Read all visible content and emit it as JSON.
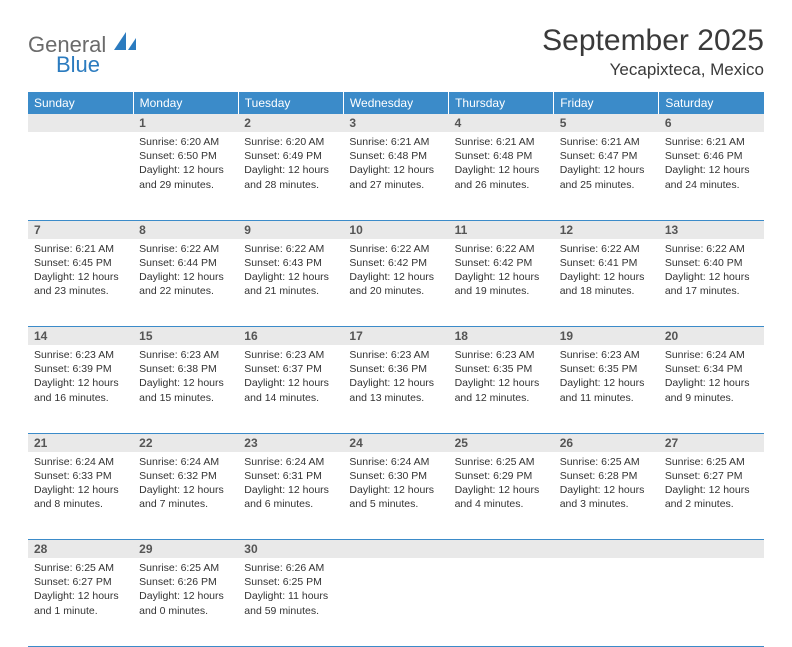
{
  "brand": {
    "word1": "General",
    "word2": "Blue",
    "accent": "#2b7bbf",
    "gray": "#6b6b6b"
  },
  "title": {
    "month": "September 2025",
    "location": "Yecapixteca, Mexico"
  },
  "headers": [
    "Sunday",
    "Monday",
    "Tuesday",
    "Wednesday",
    "Thursday",
    "Friday",
    "Saturday"
  ],
  "header_bg": "#3b8bc9",
  "grid_border": "#3b8bc9",
  "daynum_bg": "#e9e9e9",
  "weeks": [
    {
      "nums": [
        "",
        "1",
        "2",
        "3",
        "4",
        "5",
        "6"
      ],
      "cells": [
        null,
        {
          "sunrise": "6:20 AM",
          "sunset": "6:50 PM",
          "daylight": "12 hours and 29 minutes."
        },
        {
          "sunrise": "6:20 AM",
          "sunset": "6:49 PM",
          "daylight": "12 hours and 28 minutes."
        },
        {
          "sunrise": "6:21 AM",
          "sunset": "6:48 PM",
          "daylight": "12 hours and 27 minutes."
        },
        {
          "sunrise": "6:21 AM",
          "sunset": "6:48 PM",
          "daylight": "12 hours and 26 minutes."
        },
        {
          "sunrise": "6:21 AM",
          "sunset": "6:47 PM",
          "daylight": "12 hours and 25 minutes."
        },
        {
          "sunrise": "6:21 AM",
          "sunset": "6:46 PM",
          "daylight": "12 hours and 24 minutes."
        }
      ]
    },
    {
      "nums": [
        "7",
        "8",
        "9",
        "10",
        "11",
        "12",
        "13"
      ],
      "cells": [
        {
          "sunrise": "6:21 AM",
          "sunset": "6:45 PM",
          "daylight": "12 hours and 23 minutes."
        },
        {
          "sunrise": "6:22 AM",
          "sunset": "6:44 PM",
          "daylight": "12 hours and 22 minutes."
        },
        {
          "sunrise": "6:22 AM",
          "sunset": "6:43 PM",
          "daylight": "12 hours and 21 minutes."
        },
        {
          "sunrise": "6:22 AM",
          "sunset": "6:42 PM",
          "daylight": "12 hours and 20 minutes."
        },
        {
          "sunrise": "6:22 AM",
          "sunset": "6:42 PM",
          "daylight": "12 hours and 19 minutes."
        },
        {
          "sunrise": "6:22 AM",
          "sunset": "6:41 PM",
          "daylight": "12 hours and 18 minutes."
        },
        {
          "sunrise": "6:22 AM",
          "sunset": "6:40 PM",
          "daylight": "12 hours and 17 minutes."
        }
      ]
    },
    {
      "nums": [
        "14",
        "15",
        "16",
        "17",
        "18",
        "19",
        "20"
      ],
      "cells": [
        {
          "sunrise": "6:23 AM",
          "sunset": "6:39 PM",
          "daylight": "12 hours and 16 minutes."
        },
        {
          "sunrise": "6:23 AM",
          "sunset": "6:38 PM",
          "daylight": "12 hours and 15 minutes."
        },
        {
          "sunrise": "6:23 AM",
          "sunset": "6:37 PM",
          "daylight": "12 hours and 14 minutes."
        },
        {
          "sunrise": "6:23 AM",
          "sunset": "6:36 PM",
          "daylight": "12 hours and 13 minutes."
        },
        {
          "sunrise": "6:23 AM",
          "sunset": "6:35 PM",
          "daylight": "12 hours and 12 minutes."
        },
        {
          "sunrise": "6:23 AM",
          "sunset": "6:35 PM",
          "daylight": "12 hours and 11 minutes."
        },
        {
          "sunrise": "6:24 AM",
          "sunset": "6:34 PM",
          "daylight": "12 hours and 9 minutes."
        }
      ]
    },
    {
      "nums": [
        "21",
        "22",
        "23",
        "24",
        "25",
        "26",
        "27"
      ],
      "cells": [
        {
          "sunrise": "6:24 AM",
          "sunset": "6:33 PM",
          "daylight": "12 hours and 8 minutes."
        },
        {
          "sunrise": "6:24 AM",
          "sunset": "6:32 PM",
          "daylight": "12 hours and 7 minutes."
        },
        {
          "sunrise": "6:24 AM",
          "sunset": "6:31 PM",
          "daylight": "12 hours and 6 minutes."
        },
        {
          "sunrise": "6:24 AM",
          "sunset": "6:30 PM",
          "daylight": "12 hours and 5 minutes."
        },
        {
          "sunrise": "6:25 AM",
          "sunset": "6:29 PM",
          "daylight": "12 hours and 4 minutes."
        },
        {
          "sunrise": "6:25 AM",
          "sunset": "6:28 PM",
          "daylight": "12 hours and 3 minutes."
        },
        {
          "sunrise": "6:25 AM",
          "sunset": "6:27 PM",
          "daylight": "12 hours and 2 minutes."
        }
      ]
    },
    {
      "nums": [
        "28",
        "29",
        "30",
        "",
        "",
        "",
        ""
      ],
      "cells": [
        {
          "sunrise": "6:25 AM",
          "sunset": "6:27 PM",
          "daylight": "12 hours and 1 minute."
        },
        {
          "sunrise": "6:25 AM",
          "sunset": "6:26 PM",
          "daylight": "12 hours and 0 minutes."
        },
        {
          "sunrise": "6:26 AM",
          "sunset": "6:25 PM",
          "daylight": "11 hours and 59 minutes."
        },
        null,
        null,
        null,
        null
      ]
    }
  ],
  "labels": {
    "sunrise": "Sunrise:",
    "sunset": "Sunset:",
    "daylight": "Daylight:"
  }
}
